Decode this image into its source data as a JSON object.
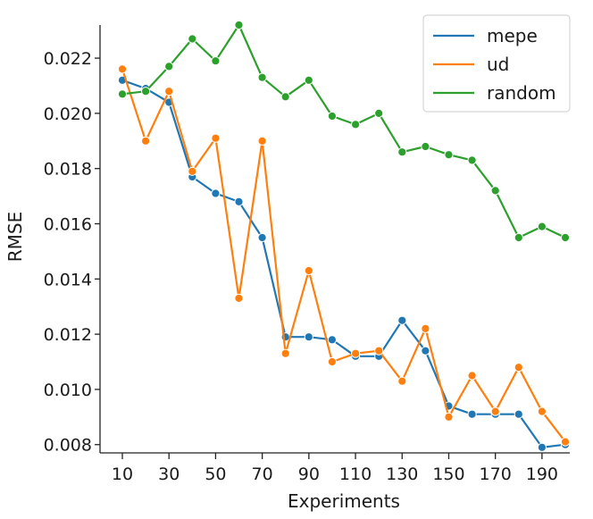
{
  "chart_data": {
    "type": "line",
    "title": "",
    "xlabel": "Experiments",
    "ylabel": "RMSE",
    "xlim": [
      6,
      200
    ],
    "ylim": [
      0.0077,
      0.0232
    ],
    "x_ticks": [
      10,
      30,
      50,
      70,
      90,
      110,
      130,
      150,
      170,
      190
    ],
    "y_ticks": [
      0.008,
      0.01,
      0.012,
      0.014,
      0.016,
      0.018,
      0.02,
      0.022
    ],
    "y_tick_labels": [
      "0.008",
      "0.010",
      "0.012",
      "0.014",
      "0.016",
      "0.018",
      "0.020",
      "0.022"
    ],
    "grid": false,
    "legend_position": "top-right",
    "x": [
      10,
      20,
      30,
      40,
      50,
      60,
      70,
      80,
      90,
      100,
      110,
      120,
      130,
      140,
      150,
      160,
      170,
      180,
      190,
      200
    ],
    "series": [
      {
        "name": "mepe",
        "color": "#1f77b4",
        "values": [
          0.0212,
          0.0209,
          0.0204,
          0.0177,
          0.0171,
          0.0168,
          0.0155,
          0.0119,
          0.0119,
          0.0118,
          0.0112,
          0.0112,
          0.0125,
          0.0114,
          0.0094,
          0.0091,
          0.0091,
          0.0091,
          0.0079,
          0.008
        ]
      },
      {
        "name": "ud",
        "color": "#ff7f0e",
        "values": [
          0.0216,
          0.019,
          0.0208,
          0.0179,
          0.0191,
          0.0133,
          0.019,
          0.0113,
          0.0143,
          0.011,
          0.0113,
          0.0114,
          0.0103,
          0.0122,
          0.009,
          0.0105,
          0.0092,
          0.0108,
          0.0092,
          0.0081
        ]
      },
      {
        "name": "random",
        "color": "#2ca02c",
        "values": [
          0.0207,
          0.0208,
          0.0217,
          0.0227,
          0.0219,
          0.0232,
          0.0213,
          0.0206,
          0.0212,
          0.0199,
          0.0196,
          0.02,
          0.0186,
          0.0188,
          0.0185,
          0.0183,
          0.0172,
          0.0155,
          0.0159,
          0.0155
        ]
      }
    ]
  }
}
